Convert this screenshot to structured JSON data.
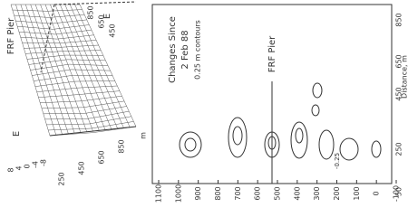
{
  "left_panel": {
    "label": "FRF Pier",
    "axis_label": "E",
    "z_ticks": [
      "8",
      "4",
      "0",
      "-4",
      "-8"
    ],
    "x_ticks": [
      "250",
      "450",
      "650",
      "850"
    ],
    "x_unit": "m",
    "top_ticks": [
      "850",
      "650",
      "450"
    ],
    "top_unit": "E"
  },
  "right_panel": {
    "title": [
      "Changes Since",
      "2 Feb 88",
      "0.25 m contours"
    ],
    "pier_label": "FRF Pier",
    "y_ticks": [
      "1100",
      "1000",
      "900",
      "800",
      "700",
      "600",
      "500",
      "400",
      "300",
      "200",
      "100",
      "0",
      "-100"
    ],
    "x_ticks": [
      "850",
      "650",
      "450",
      "250",
      "50"
    ],
    "x_axis_label": "Distance, m",
    "contour_labels": [
      "-0.25"
    ]
  }
}
